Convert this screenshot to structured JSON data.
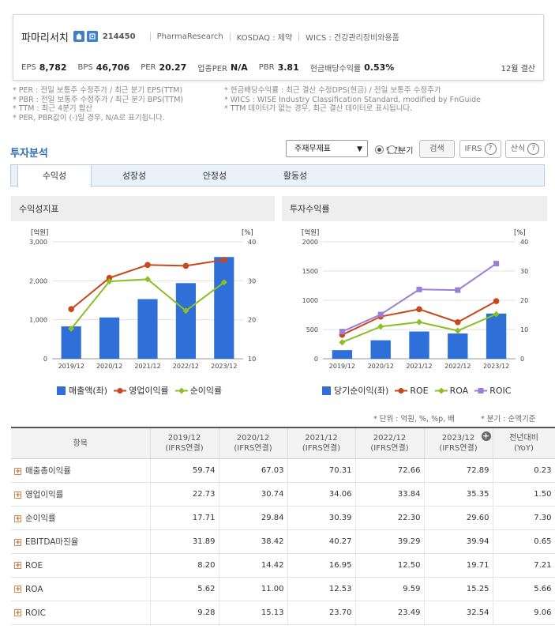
{
  "company": {
    "name": "파마리서치",
    "code": "214450",
    "english_name": "PharmaResearch",
    "market": "KOSDAQ : 제약",
    "wics": "WICS : 건강관리장비와용품"
  },
  "kpis": [
    {
      "label": "EPS",
      "value": "8,782"
    },
    {
      "label": "BPS",
      "value": "46,706"
    },
    {
      "label": "PER",
      "value": "20.27"
    },
    {
      "label": "업종PER",
      "value": "N/A"
    },
    {
      "label": "PBR",
      "value": "3.81"
    },
    {
      "label": "현금배당수익률",
      "value": "0.53%"
    }
  ],
  "settlement": "12월 결산",
  "notes_left": [
    "* PER : 전일 보통주 수정주가 / 최근 분기 EPS(TTM)",
    "* PBR : 전일 보통주 수정주가 / 최근 분기 BPS(TTM)",
    "* TTM : 최근 4분기 합산",
    "* PER, PBR값이 (-)일 경우, N/A로 표기됩니다."
  ],
  "notes_right": [
    "* 현금배당수익률 : 최근 결산 수정DPS(현금) / 전일 보통주 수정주가",
    "* WICS : WISE Industry Classification Standard, modified by FnGuide",
    "* TTM 데이터가 없는 경우, 최근 결산 데이터로 표시됩니다."
  ],
  "section_title": "투자분석",
  "controls": {
    "select_value": "주재무제표",
    "radio_annual": "연간",
    "radio_quarter": "분기",
    "search": "검색",
    "ifrs": "IFRS",
    "formula": "산식"
  },
  "tabs": [
    "수익성",
    "성장성",
    "안정성",
    "활동성"
  ],
  "panels": {
    "left_title": "수익성지표",
    "right_title": "투자수익률"
  },
  "chart_data": [
    {
      "type": "bar",
      "title": "수익성지표",
      "categories": [
        "2019/12",
        "2020/12",
        "2021/12",
        "2022/12",
        "2023/12"
      ],
      "y_unit_left": "[억원]",
      "y_unit_right": "[%]",
      "ylim": [
        0,
        3000
      ],
      "yticks": [
        "0",
        "1,000",
        "2,000",
        "3,000"
      ],
      "y2lim": [
        10,
        40
      ],
      "y2ticks": [
        "10",
        "20",
        "30",
        "40"
      ],
      "series": [
        {
          "name": "매출액(좌)",
          "type": "bar",
          "axis": "left",
          "color": "#2f6fd8",
          "values": [
            830,
            1060,
            1530,
            1940,
            2610
          ]
        },
        {
          "name": "영업이익률",
          "type": "line",
          "axis": "right",
          "color": "#c8471b",
          "values": [
            22.73,
            30.74,
            34.06,
            33.84,
            35.35
          ]
        },
        {
          "name": "순이익률",
          "type": "line",
          "axis": "right",
          "color": "#8cbf26",
          "values": [
            17.71,
            29.84,
            30.39,
            22.3,
            29.6
          ]
        }
      ]
    },
    {
      "type": "bar",
      "title": "투자수익률",
      "categories": [
        "2019/12",
        "2020/12",
        "2021/12",
        "2022/12",
        "2023/12"
      ],
      "y_unit_left": "[억원]",
      "y_unit_right": "[%]",
      "ylim": [
        0,
        2000
      ],
      "yticks": [
        "0",
        "500",
        "1000",
        "1500",
        "2000"
      ],
      "y2lim": [
        0,
        40
      ],
      "y2ticks": [
        "0",
        "10",
        "20",
        "30",
        "40"
      ],
      "series": [
        {
          "name": "당기순이익(좌)",
          "type": "bar",
          "axis": "left",
          "color": "#2f6fd8",
          "values": [
            147,
            316,
            466,
            432,
            773
          ]
        },
        {
          "name": "ROE",
          "type": "line",
          "axis": "right",
          "color": "#c8471b",
          "values": [
            8.2,
            14.42,
            16.95,
            12.5,
            19.71
          ]
        },
        {
          "name": "ROA",
          "type": "line",
          "axis": "right",
          "color": "#8cbf26",
          "values": [
            5.62,
            11.0,
            12.53,
            9.59,
            15.25
          ]
        },
        {
          "name": "ROIC",
          "type": "line",
          "axis": "right",
          "color": "#9b7fd4",
          "values": [
            9.28,
            15.13,
            23.7,
            23.49,
            32.54
          ]
        }
      ]
    }
  ],
  "footnote_left": "* 단위 : 억원, %, %p, 배",
  "footnote_right": "* 분기 : 순액기준",
  "table": {
    "header_item": "항목",
    "columns": [
      {
        "year": "2019/12",
        "basis": "(IFRS연결)"
      },
      {
        "year": "2020/12",
        "basis": "(IFRS연결)"
      },
      {
        "year": "2021/12",
        "basis": "(IFRS연결)"
      },
      {
        "year": "2022/12",
        "basis": "(IFRS연결)"
      },
      {
        "year": "2023/12",
        "basis": "(IFRS연결)"
      }
    ],
    "yoy_header": "전년대비",
    "yoy_sub": "(YoY)",
    "rows": [
      {
        "label": "매출총이익률",
        "values": [
          "59.74",
          "67.03",
          "70.31",
          "72.66",
          "72.89"
        ],
        "yoy": "0.23"
      },
      {
        "label": "영업이익률",
        "values": [
          "22.73",
          "30.74",
          "34.06",
          "33.84",
          "35.35"
        ],
        "yoy": "1.50"
      },
      {
        "label": "순이익률",
        "values": [
          "17.71",
          "29.84",
          "30.39",
          "22.30",
          "29.60"
        ],
        "yoy": "7.30"
      },
      {
        "label": "EBITDA마진율",
        "values": [
          "31.89",
          "38.42",
          "40.27",
          "39.29",
          "39.94"
        ],
        "yoy": "0.65"
      },
      {
        "label": "ROE",
        "values": [
          "8.20",
          "14.42",
          "16.95",
          "12.50",
          "19.71"
        ],
        "yoy": "7.21"
      },
      {
        "label": "ROA",
        "values": [
          "5.62",
          "11.00",
          "12.53",
          "9.59",
          "15.25"
        ],
        "yoy": "5.66"
      },
      {
        "label": "ROIC",
        "values": [
          "9.28",
          "15.13",
          "23.70",
          "23.49",
          "32.54"
        ],
        "yoy": "9.06"
      }
    ]
  }
}
